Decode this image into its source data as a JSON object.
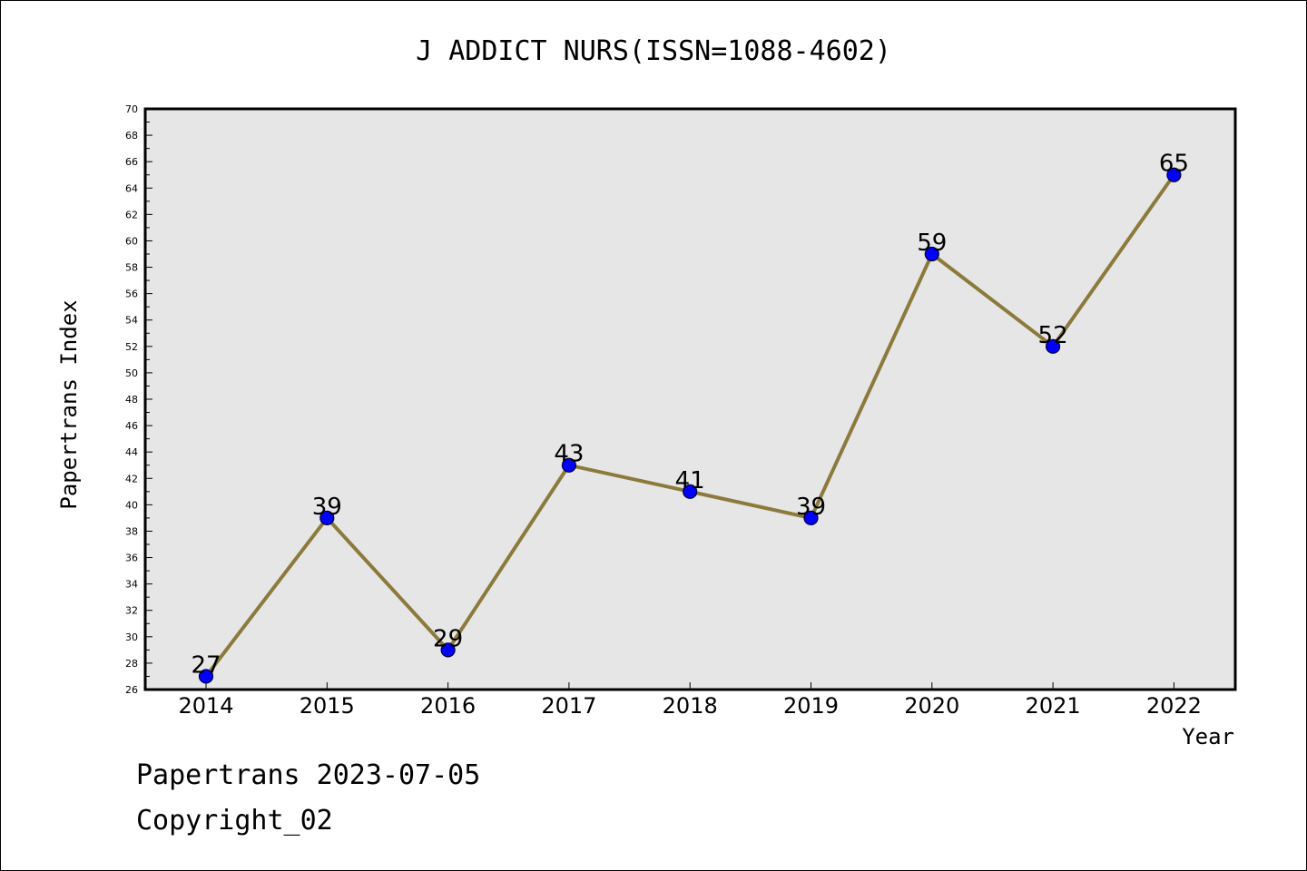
{
  "chart_data": {
    "type": "line",
    "title": "J ADDICT NURS(ISSN=1088-4602)",
    "xlabel": "Year",
    "ylabel": "Papertrans Index",
    "categories": [
      "2014",
      "2015",
      "2016",
      "2017",
      "2018",
      "2019",
      "2020",
      "2021",
      "2022"
    ],
    "series": [
      {
        "values": [
          27,
          39,
          29,
          43,
          41,
          39,
          59,
          52,
          65
        ]
      }
    ],
    "data_labels": [
      "27",
      "39",
      "29",
      "43",
      "41",
      "39",
      "59",
      "52",
      "65"
    ],
    "ylim": [
      26,
      70
    ],
    "yticks": [
      "26",
      "28",
      "30",
      "32",
      "34",
      "36",
      "38",
      "40",
      "42",
      "44",
      "46",
      "48",
      "50",
      "52",
      "54",
      "56",
      "58",
      "60",
      "62",
      "64",
      "66",
      "68",
      "70"
    ],
    "grid": false,
    "colors": {
      "plot_background": "#e6e6e6",
      "line": "#8c7a3c",
      "marker": "#0000ff",
      "marker_edge": "#000033"
    }
  },
  "footer": {
    "line1": "Papertrans 2023-07-05",
    "line2": "Copyright_02"
  }
}
